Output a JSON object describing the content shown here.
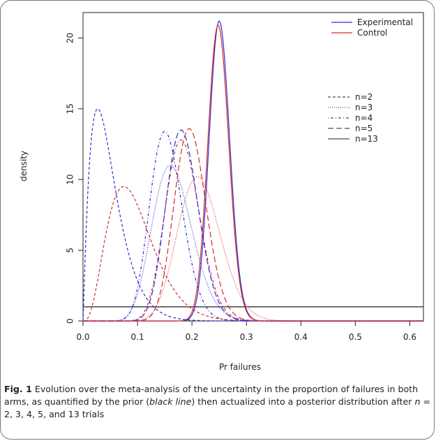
{
  "chart_data": {
    "type": "line",
    "xlabel": "Pr failures",
    "ylabel": "density",
    "xlim": [
      0,
      0.625
    ],
    "ylim": [
      0,
      21.8
    ],
    "xticks": [
      "0.0",
      "0.1",
      "0.2",
      "0.3",
      "0.4",
      "0.5",
      "0.6"
    ],
    "yticks": [
      "0",
      "5",
      "10",
      "15",
      "20"
    ],
    "grid": false,
    "legend_arms": {
      "position": "top-right",
      "entries": [
        {
          "name": "Experimental",
          "color": "#2b2bd6"
        },
        {
          "name": "Control",
          "color": "#d62b2b"
        }
      ]
    },
    "legend_trials": {
      "position": "right",
      "entries": [
        {
          "name": "n=2",
          "dash": "dashed"
        },
        {
          "name": "n=3",
          "dash": "dotted"
        },
        {
          "name": "n=4",
          "dash": "dotdash"
        },
        {
          "name": "n=5",
          "dash": "longdash"
        },
        {
          "name": "n=13",
          "dash": "solid"
        }
      ]
    },
    "prior": {
      "color": "#222222",
      "density": 1.0
    },
    "series": [
      {
        "arm": "Experimental",
        "n": 2,
        "dash": "dashed",
        "color": "#2b2bd6",
        "mode": 0.027,
        "peak": 15.0
      },
      {
        "arm": "Control",
        "n": 2,
        "dash": "dashed",
        "color": "#d62b2b",
        "mode": 0.075,
        "peak": 9.5
      },
      {
        "arm": "Experimental",
        "n": 3,
        "dash": "dotted",
        "color": "#2b2bd6",
        "mode": 0.16,
        "peak": 11.0
      },
      {
        "arm": "Control",
        "n": 3,
        "dash": "dotted",
        "color": "#d62b2b",
        "mode": 0.21,
        "peak": 10.2
      },
      {
        "arm": "Experimental",
        "n": 4,
        "dash": "dotdash",
        "color": "#2b2bd6",
        "mode": 0.15,
        "peak": 13.4
      },
      {
        "arm": "Control",
        "n": 4,
        "dash": "dotdash",
        "color": "#d62b2b",
        "mode": 0.18,
        "peak": 12.8
      },
      {
        "arm": "Experimental",
        "n": 5,
        "dash": "longdash",
        "color": "#2b2bd6",
        "mode": 0.18,
        "peak": 13.5
      },
      {
        "arm": "Control",
        "n": 5,
        "dash": "longdash",
        "color": "#d62b2b",
        "mode": 0.195,
        "peak": 13.6
      },
      {
        "arm": "Experimental",
        "n": 13,
        "dash": "solid",
        "color": "#2b2bd6",
        "mode": 0.25,
        "peak": 21.2
      },
      {
        "arm": "Control",
        "n": 13,
        "dash": "solid",
        "color": "#d62b2b",
        "mode": 0.248,
        "peak": 20.9
      }
    ]
  },
  "caption": {
    "fig_label": "Fig. 1",
    "t1": " Evolution over the meta-analysis of the uncertainty in the proportion of failures in both arms, as quantified by the prior (",
    "t2": "black line",
    "t3": ") then actualized into a posterior distribution after ",
    "t4": "n",
    "t5": " = 2, 3, 4, 5, and 13 trials"
  }
}
